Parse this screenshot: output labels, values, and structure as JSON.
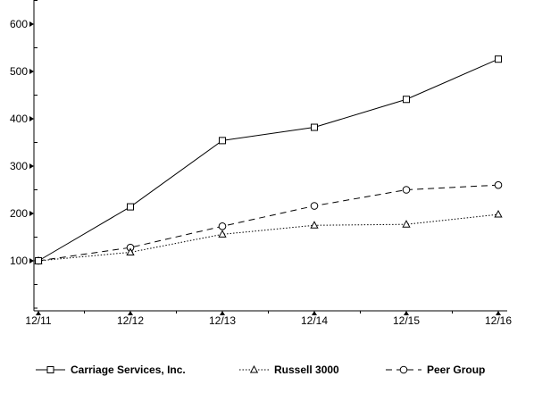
{
  "chart_data": {
    "type": "line",
    "title": "",
    "xlabel": "",
    "ylabel": "",
    "categories": [
      "12/11",
      "12/12",
      "12/13",
      "12/14",
      "12/15",
      "12/16"
    ],
    "yticks": [
      100,
      200,
      300,
      400,
      500,
      600
    ],
    "ylim": [
      0,
      650
    ],
    "grid": false,
    "legend_position": "bottom",
    "series": [
      {
        "name": "Carriage Services, Inc.",
        "values": [
          100,
          214,
          354,
          382,
          441,
          526
        ],
        "marker": "square",
        "line": "solid"
      },
      {
        "name": "Russell 3000",
        "values": [
          100,
          118,
          156,
          175,
          177,
          198
        ],
        "marker": "triangle",
        "line": "dotted"
      },
      {
        "name": "Peer Group",
        "values": [
          100,
          128,
          173,
          216,
          250,
          260
        ],
        "marker": "circle",
        "line": "dashed"
      }
    ]
  }
}
